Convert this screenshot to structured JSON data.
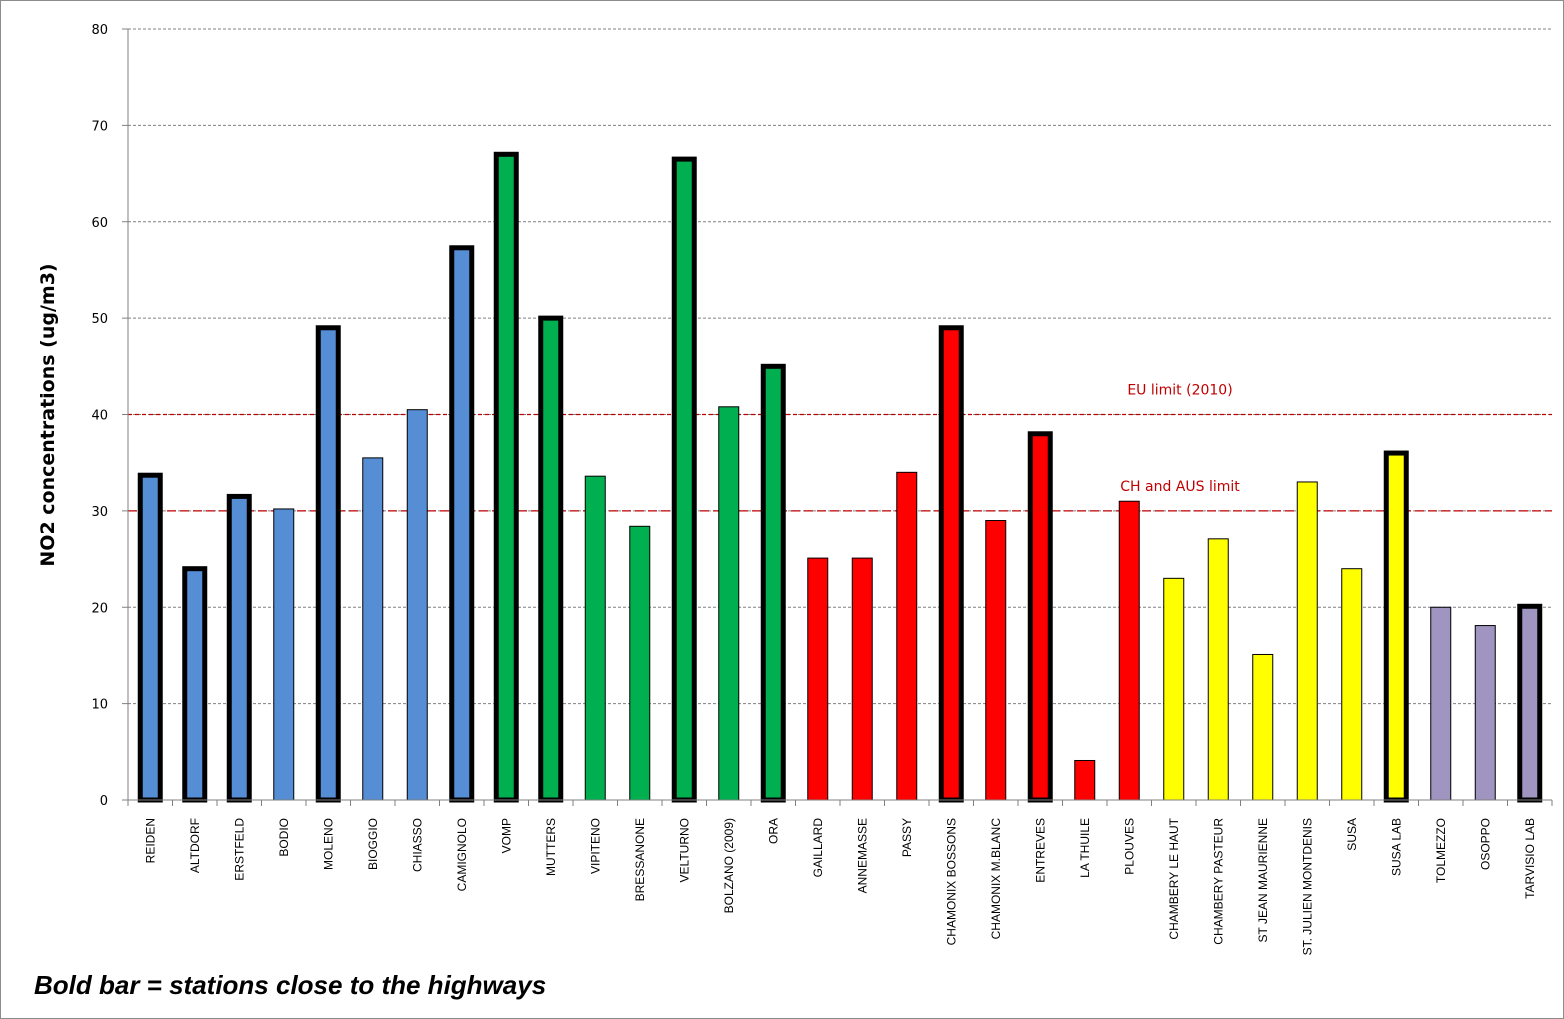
{
  "chart_data": {
    "type": "bar",
    "ylabel": "NO2 concentrations (ug/m3)",
    "ylim": [
      0,
      80
    ],
    "yticks": [
      0,
      10,
      20,
      30,
      40,
      50,
      60,
      70,
      80
    ],
    "grid": true,
    "categories": [
      "REIDEN",
      "ALTDORF",
      "ERSTFELD",
      "BODIO",
      "MOLENO",
      "BIOGGIO",
      "CHIASSO",
      "CAMIGNOLO",
      "VOMP",
      "MUTTERS",
      "VIPITENO",
      "BRESSANONE",
      "VELTURNO",
      "BOLZANO (2009)",
      "ORA",
      "GAILLARD",
      "ANNEMASSE",
      "PASSY",
      "CHAMONIX BOSSONS",
      "CHAMONIX M.BLANC",
      "ENTREVES",
      "LA THUILE",
      "PLOUVES",
      "CHAMBERY  LE HAUT",
      "CHAMBERY PASTEUR",
      "ST JEAN MAURIENNE",
      "ST. JULIEN MONTDENIS",
      "SUSA",
      "SUSA LAB",
      "TOLMEZZO",
      "OSOPPO",
      "TARVISIO LAB"
    ],
    "values": [
      33.7,
      24,
      31.5,
      30.2,
      49,
      35.5,
      40.5,
      57.3,
      67,
      50,
      33.6,
      28.4,
      66.5,
      40.8,
      45,
      25.1,
      25.1,
      34,
      49,
      29,
      38,
      4.1,
      31,
      23,
      27.1,
      15.1,
      33,
      24,
      36,
      20,
      18.1,
      20.1
    ],
    "highway_station": [
      true,
      true,
      true,
      false,
      true,
      false,
      false,
      true,
      true,
      true,
      false,
      false,
      true,
      false,
      true,
      false,
      false,
      false,
      true,
      false,
      true,
      false,
      false,
      false,
      false,
      false,
      false,
      false,
      true,
      false,
      false,
      true
    ],
    "bar_colors": [
      "#558ed5",
      "#558ed5",
      "#558ed5",
      "#558ed5",
      "#558ed5",
      "#558ed5",
      "#558ed5",
      "#558ed5",
      "#00b050",
      "#00b050",
      "#00b050",
      "#00b050",
      "#00b050",
      "#00b050",
      "#00b050",
      "#ff0000",
      "#ff0000",
      "#ff0000",
      "#ff0000",
      "#ff0000",
      "#ff0000",
      "#ff0000",
      "#ff0000",
      "#ffff00",
      "#ffff00",
      "#ffff00",
      "#ffff00",
      "#ffff00",
      "#ffff00",
      "#a094c0",
      "#a094c0",
      "#a094c0"
    ],
    "reference_lines": [
      {
        "label": "EU limit  (2010)",
        "value": 40,
        "color": "#c00000"
      },
      {
        "label": "CH and AUS limit",
        "value": 30,
        "color": "#c00000"
      }
    ],
    "annotation": "Bold bar = stations close to the highways"
  }
}
